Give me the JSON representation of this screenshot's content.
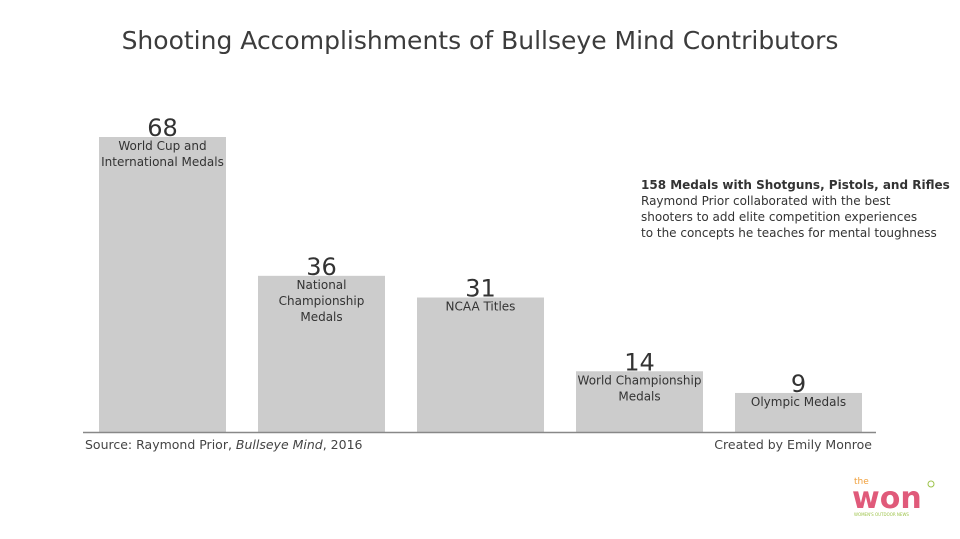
{
  "chart_data": {
    "type": "bar",
    "title": "Shooting Accomplishments of Bullseye Mind Contributors",
    "categories": [
      "World Cup and International Medals",
      "National Championship Medals",
      "NCAA Titles",
      "World Championship Medals",
      "Olympic Medals"
    ],
    "category_label_lines": [
      [
        "World Cup and",
        "International Medals"
      ],
      [
        "National",
        "Championship",
        "Medals"
      ],
      [
        "NCAA Titles"
      ],
      [
        "World Championship",
        "Medals"
      ],
      [
        "Olympic Medals"
      ]
    ],
    "values": [
      68,
      36,
      31,
      14,
      9
    ],
    "bar_color": "#cccccc",
    "baseline_color": "#888888",
    "ylim": [
      0,
      70
    ],
    "grid": false
  },
  "annotation": {
    "title": "158 Medals with Shotguns, Pistols, and Rifles",
    "lines": [
      "Raymond Prior collaborated with the best",
      "shooters to add elite competition experiences",
      "to the concepts he teaches for mental toughness"
    ]
  },
  "footer": {
    "source_prefix": "Source: Raymond Prior, ",
    "source_italic": "Bullseye Mind",
    "source_suffix": ", 2016",
    "credit": "Created by Emily Monroe"
  },
  "logo": {
    "small_text": "the",
    "main_text": "won",
    "tagline": "WOMEN'S OUTDOOR NEWS",
    "colors": [
      "#9dc34a",
      "#e05a7a",
      "#f0a03c"
    ]
  }
}
